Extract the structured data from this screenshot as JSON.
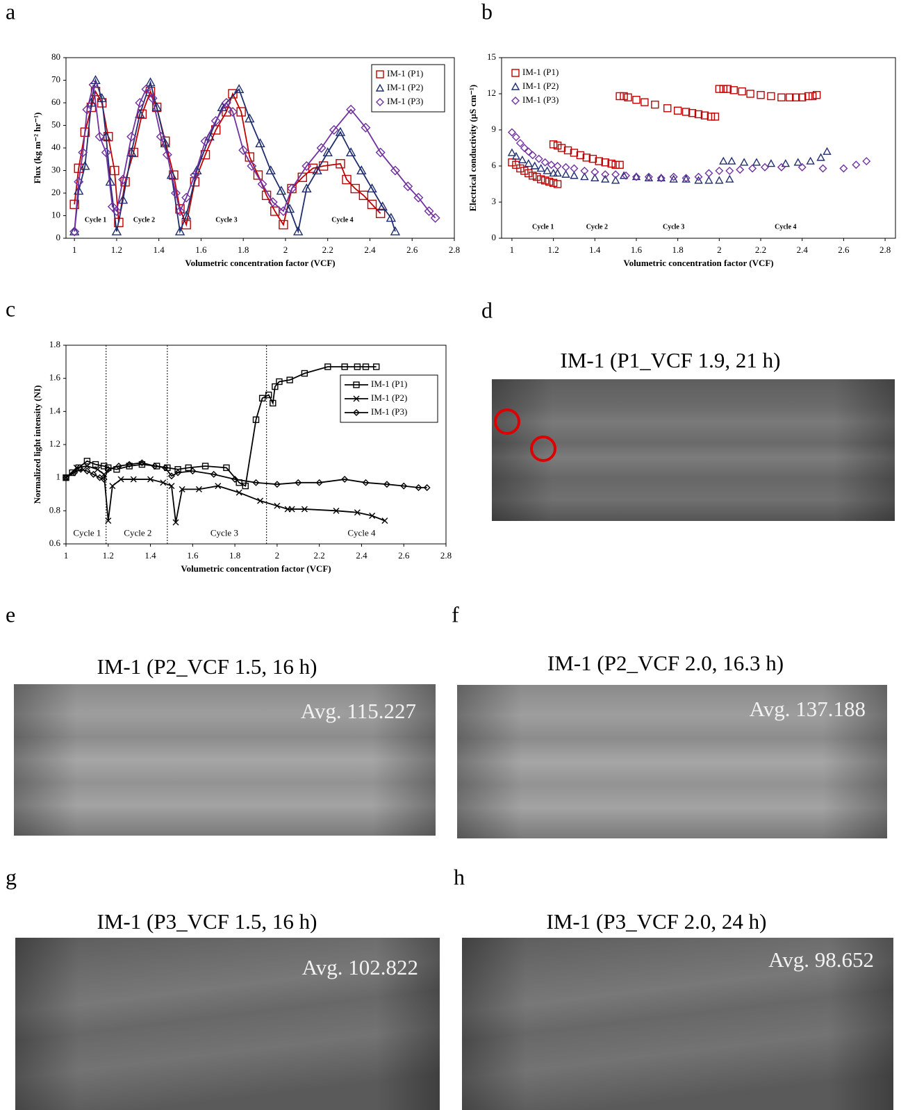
{
  "chart_data": [
    {
      "panel_label": "a",
      "type": "line",
      "x_label": "Volumetric concentration factor (VCF)",
      "y_label": "Flux (kg m⁻² hr⁻¹)",
      "xlim": [
        0.96,
        2.8
      ],
      "xticks": [
        1,
        1.2,
        1.4,
        1.6,
        1.8,
        2,
        2.2,
        2.4,
        2.6,
        2.8
      ],
      "ylim": [
        0,
        80
      ],
      "yticks": [
        0,
        10,
        20,
        30,
        40,
        50,
        60,
        70,
        80
      ],
      "legend": "upper right",
      "legend_frame": true,
      "line": true,
      "annotations": [
        "Cycle 1",
        "Cycle 2",
        "Cycle 3",
        "Cycle 4"
      ],
      "series": [
        {
          "name": "IM-1 (P1)",
          "color": "#c00000",
          "marker": "square",
          "x": [
            1.0,
            1.02,
            1.05,
            1.08,
            1.1,
            1.13,
            1.16,
            1.19,
            1.21,
            1.24,
            1.28,
            1.32,
            1.36,
            1.39,
            1.43,
            1.47,
            1.5,
            1.53,
            1.57,
            1.62,
            1.67,
            1.72,
            1.75,
            1.79,
            1.83,
            1.87,
            1.91,
            1.95,
            1.99,
            2.03,
            2.08,
            2.13,
            2.18,
            2.26,
            2.29,
            2.33,
            2.37,
            2.41,
            2.45
          ],
          "values": [
            15,
            31,
            47,
            58,
            65,
            60,
            45,
            30,
            7,
            25,
            38,
            55,
            65,
            58,
            43,
            28,
            13,
            6,
            25,
            37,
            48,
            56,
            64,
            56,
            36,
            28,
            19,
            12,
            6,
            22,
            27,
            31,
            32,
            33,
            26,
            22,
            19,
            15,
            11
          ]
        },
        {
          "name": "IM-1 (P2)",
          "color": "#1f2d6e",
          "marker": "triangle",
          "x": [
            1.0,
            1.02,
            1.05,
            1.08,
            1.1,
            1.13,
            1.15,
            1.17,
            1.2,
            1.23,
            1.27,
            1.31,
            1.36,
            1.39,
            1.43,
            1.46,
            1.5,
            1.53,
            1.58,
            1.64,
            1.7,
            1.78,
            1.83,
            1.88,
            1.93,
            1.98,
            2.02,
            2.06,
            2.1,
            2.15,
            2.2,
            2.26,
            2.31,
            2.36,
            2.41,
            2.46,
            2.5,
            2.52
          ],
          "values": [
            3,
            21,
            32,
            60,
            70,
            62,
            45,
            25,
            3,
            17,
            38,
            55,
            69,
            58,
            42,
            28,
            3,
            10,
            30,
            45,
            58,
            66,
            53,
            42,
            30,
            21,
            13,
            3,
            22,
            30,
            38,
            47,
            38,
            30,
            22,
            14,
            9,
            3
          ]
        },
        {
          "name": "IM-1 (P3)",
          "color": "#7030a0",
          "marker": "diamond",
          "x": [
            1.0,
            1.02,
            1.04,
            1.06,
            1.09,
            1.12,
            1.15,
            1.18,
            1.2,
            1.23,
            1.27,
            1.31,
            1.34,
            1.37,
            1.41,
            1.44,
            1.48,
            1.5,
            1.53,
            1.57,
            1.62,
            1.67,
            1.72,
            1.75,
            1.8,
            1.84,
            1.89,
            1.94,
            1.99,
            2.03,
            2.1,
            2.17,
            2.23,
            2.31,
            2.38,
            2.45,
            2.52,
            2.58,
            2.63,
            2.68,
            2.71
          ],
          "values": [
            3,
            25,
            38,
            57,
            68,
            45,
            38,
            14,
            12,
            26,
            45,
            60,
            66,
            62,
            45,
            37,
            20,
            12,
            18,
            28,
            43,
            52,
            60,
            56,
            39,
            32,
            24,
            16,
            12,
            22,
            32,
            40,
            48,
            57,
            49,
            38,
            30,
            23,
            18,
            12,
            9
          ]
        }
      ]
    },
    {
      "panel_label": "b",
      "type": "scatter",
      "x_label": "Volumetric concentration factor (VCF)",
      "y_label": "Electrical conductivity (µS cm⁻¹)",
      "xlim": [
        0.95,
        2.85
      ],
      "xticks": [
        1,
        1.2,
        1.4,
        1.6,
        1.8,
        2,
        2.2,
        2.4,
        2.6,
        2.8
      ],
      "ylim": [
        0,
        15
      ],
      "yticks": [
        0,
        3,
        6,
        9,
        12,
        15
      ],
      "legend": "upper left",
      "legend_frame": false,
      "line": false,
      "annotations": [
        "Cycle 1",
        "Cycle 2",
        "Cycle 3",
        "Cycle 4"
      ],
      "series": [
        {
          "name": "IM-1 (P1)",
          "color": "#c00000",
          "marker": "square",
          "x": [
            1.0,
            1.02,
            1.04,
            1.06,
            1.08,
            1.1,
            1.12,
            1.14,
            1.16,
            1.18,
            1.2,
            1.22,
            1.2,
            1.22,
            1.24,
            1.27,
            1.3,
            1.33,
            1.36,
            1.39,
            1.42,
            1.45,
            1.48,
            1.5,
            1.52,
            1.52,
            1.54,
            1.56,
            1.6,
            1.64,
            1.69,
            1.75,
            1.8,
            1.84,
            1.87,
            1.9,
            1.93,
            1.96,
            1.98,
            2.0,
            2.02,
            2.04,
            2.07,
            2.11,
            2.15,
            2.2,
            2.25,
            2.3,
            2.34,
            2.37,
            2.4,
            2.43,
            2.45,
            2.47
          ],
          "values": [
            6.3,
            6.1,
            5.8,
            5.6,
            5.4,
            5.2,
            5.1,
            4.9,
            4.8,
            4.7,
            4.6,
            4.5,
            7.8,
            7.7,
            7.5,
            7.3,
            7.1,
            6.9,
            6.7,
            6.6,
            6.4,
            6.3,
            6.2,
            6.1,
            6.1,
            11.8,
            11.8,
            11.7,
            11.5,
            11.3,
            11.1,
            10.8,
            10.6,
            10.5,
            10.4,
            10.3,
            10.2,
            10.1,
            10.1,
            12.4,
            12.4,
            12.4,
            12.3,
            12.2,
            12.0,
            11.9,
            11.8,
            11.7,
            11.7,
            11.7,
            11.7,
            11.8,
            11.8,
            11.9
          ]
        },
        {
          "name": "IM-1 (P2)",
          "color": "#1f2d6e",
          "marker": "triangle",
          "x": [
            1.0,
            1.02,
            1.05,
            1.08,
            1.11,
            1.14,
            1.17,
            1.2,
            1.22,
            1.26,
            1.3,
            1.35,
            1.4,
            1.45,
            1.5,
            1.54,
            1.6,
            1.66,
            1.72,
            1.78,
            1.84,
            1.9,
            1.95,
            2.0,
            2.05,
            2.02,
            2.06,
            2.12,
            2.18,
            2.25,
            2.32,
            2.38,
            2.44,
            2.49,
            2.52
          ],
          "values": [
            7.1,
            6.8,
            6.5,
            6.2,
            6.0,
            5.8,
            5.6,
            5.4,
            5.4,
            5.3,
            5.2,
            5.1,
            5.0,
            4.9,
            4.8,
            5.2,
            5.1,
            5.0,
            5.0,
            4.9,
            4.9,
            4.8,
            4.8,
            4.8,
            4.9,
            6.4,
            6.4,
            6.3,
            6.3,
            6.2,
            6.2,
            6.3,
            6.4,
            6.7,
            7.2
          ]
        },
        {
          "name": "IM-1 (P3)",
          "color": "#7030a0",
          "marker": "diamond",
          "x": [
            1.0,
            1.02,
            1.04,
            1.06,
            1.08,
            1.1,
            1.13,
            1.16,
            1.19,
            1.22,
            1.26,
            1.3,
            1.35,
            1.4,
            1.45,
            1.5,
            1.55,
            1.6,
            1.66,
            1.72,
            1.78,
            1.84,
            1.9,
            1.95,
            2.0,
            2.05,
            2.1,
            2.16,
            2.22,
            2.3,
            2.4,
            2.5,
            2.6,
            2.66,
            2.71
          ],
          "values": [
            8.8,
            8.4,
            7.9,
            7.5,
            7.2,
            6.9,
            6.6,
            6.3,
            6.1,
            6.0,
            5.9,
            5.8,
            5.6,
            5.5,
            5.3,
            5.3,
            5.2,
            5.1,
            5.1,
            5.0,
            5.1,
            5.0,
            5.1,
            5.4,
            5.6,
            5.6,
            5.7,
            5.8,
            5.9,
            5.9,
            5.9,
            5.8,
            5.8,
            6.1,
            6.4
          ]
        }
      ]
    },
    {
      "panel_label": "c",
      "type": "line",
      "x_label": "Volumetric concentration factor (VCF)",
      "y_label": "Normalized light intensity (NI)",
      "xlim": [
        1,
        2.8
      ],
      "xticks": [
        1,
        1.2,
        1.4,
        1.6,
        1.8,
        2,
        2.2,
        2.4,
        2.6,
        2.8
      ],
      "ylim": [
        0.6,
        1.8
      ],
      "yticks": [
        0.6,
        0.8,
        1,
        1.2,
        1.4,
        1.6,
        1.8
      ],
      "legend": "right",
      "legend_frame": true,
      "line": true,
      "vlines": [
        1.19,
        1.48,
        1.95
      ],
      "annotations": [
        "Cycle 1",
        "Cycle 2",
        "Cycle 3",
        "Cycle 4"
      ],
      "series": [
        {
          "name": "IM-1 (P1)",
          "color": "#000000",
          "marker": "square",
          "x": [
            1.0,
            1.03,
            1.06,
            1.1,
            1.14,
            1.18,
            1.2,
            1.24,
            1.3,
            1.36,
            1.43,
            1.48,
            1.53,
            1.58,
            1.66,
            1.76,
            1.82,
            1.85,
            1.9,
            1.93,
            1.96,
            1.98,
            1.99,
            2.01,
            2.06,
            2.13,
            2.24,
            2.32,
            2.38,
            2.42,
            2.47
          ],
          "values": [
            1.0,
            1.03,
            1.06,
            1.1,
            1.08,
            1.07,
            1.06,
            1.05,
            1.07,
            1.08,
            1.07,
            1.06,
            1.05,
            1.06,
            1.07,
            1.06,
            0.97,
            0.95,
            1.35,
            1.48,
            1.5,
            1.45,
            1.55,
            1.58,
            1.59,
            1.63,
            1.67,
            1.67,
            1.67,
            1.67,
            1.67
          ]
        },
        {
          "name": "IM-1 (P2)",
          "color": "#000000",
          "marker": "x",
          "x": [
            1.0,
            1.05,
            1.1,
            1.15,
            1.18,
            1.2,
            1.22,
            1.26,
            1.32,
            1.4,
            1.46,
            1.5,
            1.52,
            1.55,
            1.63,
            1.72,
            1.82,
            1.92,
            2.0,
            2.05,
            2.07,
            2.13,
            2.28,
            2.38,
            2.45,
            2.51
          ],
          "values": [
            1.0,
            1.06,
            1.07,
            1.05,
            1.02,
            0.74,
            0.95,
            0.99,
            0.99,
            0.99,
            0.97,
            0.95,
            0.73,
            0.93,
            0.93,
            0.95,
            0.91,
            0.86,
            0.83,
            0.81,
            0.81,
            0.81,
            0.8,
            0.79,
            0.77,
            0.74
          ]
        },
        {
          "name": "IM-1 (P3)",
          "color": "#000000",
          "marker": "diamond",
          "x": [
            1.0,
            1.04,
            1.07,
            1.1,
            1.13,
            1.16,
            1.18,
            1.2,
            1.25,
            1.3,
            1.36,
            1.42,
            1.47,
            1.5,
            1.53,
            1.6,
            1.7,
            1.8,
            1.9,
            2.0,
            2.1,
            2.2,
            2.32,
            2.42,
            2.52,
            2.6,
            2.67,
            2.71
          ],
          "values": [
            1.0,
            1.03,
            1.05,
            1.04,
            1.02,
            1.0,
            0.99,
            1.05,
            1.07,
            1.08,
            1.09,
            1.07,
            1.06,
            1.01,
            1.03,
            1.04,
            1.02,
            0.99,
            0.97,
            0.96,
            0.97,
            0.97,
            0.99,
            0.97,
            0.96,
            0.95,
            0.94,
            0.94
          ]
        }
      ]
    }
  ],
  "images": [
    {
      "panel_label": "d",
      "title": "IM-1 (P1_VCF 1.9, 21 h)"
    },
    {
      "panel_label": "e",
      "title": "IM-1 (P2_VCF 1.5, 16 h)",
      "avg": "Avg. 115.227"
    },
    {
      "panel_label": "f",
      "title": "IM-1 (P2_VCF 2.0, 16.3 h)",
      "avg": "Avg. 137.188"
    },
    {
      "panel_label": "g",
      "title": "IM-1 (P3_VCF 1.5, 16 h)",
      "avg": "Avg. 102.822"
    },
    {
      "panel_label": "h",
      "title": "IM-1 (P3_VCF 2.0, 24 h)",
      "avg": "Avg. 98.652"
    }
  ]
}
